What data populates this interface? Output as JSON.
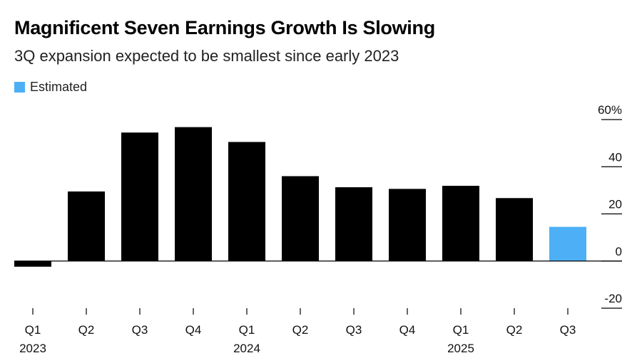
{
  "header": {
    "title": "Magnificent Seven Earnings Growth Is Slowing",
    "subtitle": "3Q expansion expected to be smallest since early 2023"
  },
  "legend": {
    "label": "Estimated",
    "color": "#4db0f7"
  },
  "colors": {
    "actual": "#000000",
    "estimated": "#4db0f7"
  },
  "chart_data": {
    "type": "bar",
    "title": "Magnificent Seven Earnings Growth Is Slowing",
    "subtitle": "3Q expansion expected to be smallest since early 2023",
    "categories": [
      "Q1",
      "Q2",
      "Q3",
      "Q4",
      "Q1",
      "Q2",
      "Q3",
      "Q4",
      "Q1",
      "Q2",
      "Q3"
    ],
    "year_labels": [
      {
        "index": 0,
        "label": "2023"
      },
      {
        "index": 4,
        "label": "2024"
      },
      {
        "index": 8,
        "label": "2025"
      }
    ],
    "values": [
      -2.4,
      29.5,
      54.5,
      56.8,
      50.5,
      36.0,
      31.3,
      30.6,
      31.9,
      26.7,
      14.5
    ],
    "estimated": [
      false,
      false,
      false,
      false,
      false,
      false,
      false,
      false,
      false,
      false,
      true
    ],
    "ylim": [
      -20,
      60
    ],
    "yticks": [
      60,
      40,
      20,
      0,
      -20
    ],
    "ytick_labels": [
      "60%",
      "40",
      "20",
      "0",
      "-20"
    ],
    "y_axis_side": "right",
    "grid": false,
    "legend_position": "top-left"
  }
}
